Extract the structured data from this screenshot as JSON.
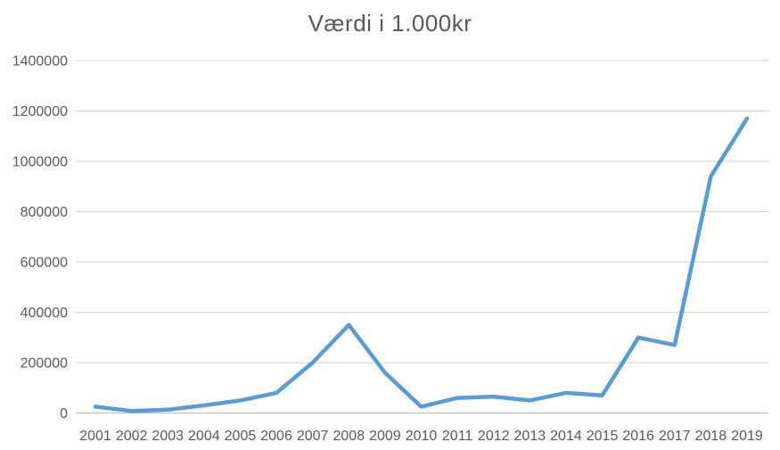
{
  "chart_data": {
    "type": "line",
    "title": "Værdi i 1.000kr",
    "categories": [
      2001,
      2002,
      2003,
      2004,
      2005,
      2006,
      2007,
      2008,
      2009,
      2010,
      2011,
      2012,
      2013,
      2014,
      2015,
      2016,
      2017,
      2018,
      2019
    ],
    "values": [
      25000,
      8000,
      13000,
      30000,
      50000,
      80000,
      200000,
      350000,
      160000,
      25000,
      60000,
      65000,
      50000,
      80000,
      70000,
      300000,
      270000,
      940000,
      1170000
    ],
    "xlabel": "",
    "ylabel": "",
    "ylim": [
      0,
      1400000
    ],
    "yticks": [
      0,
      200000,
      400000,
      600000,
      800000,
      1000000,
      1200000,
      1400000
    ],
    "ytick_labels": [
      "0",
      "200000",
      "400000",
      "600000",
      "800000",
      "1000000",
      "1200000",
      "1400000"
    ],
    "grid": true,
    "legend": "none",
    "line_color": "#5B9BD5",
    "gridline_color": "#D9D9D9",
    "axis_line_color": "#BFBFBF",
    "text_color": "#595959",
    "background_color": "#FFFFFF"
  }
}
